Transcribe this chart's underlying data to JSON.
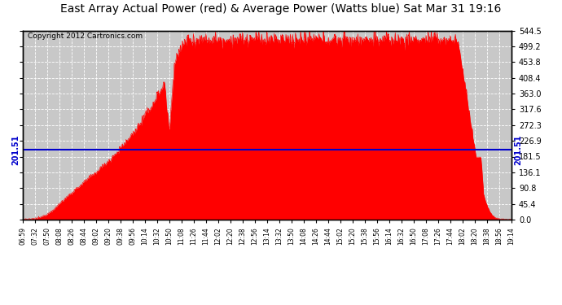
{
  "title": "East Array Actual Power (red) & Average Power (Watts blue) Sat Mar 31 19:16",
  "copyright": "Copyright 2012 Cartronics.com",
  "average_power": 201.51,
  "y_max": 544.5,
  "y_min": 0.0,
  "y_ticks": [
    0.0,
    45.4,
    90.8,
    136.1,
    181.5,
    226.9,
    272.3,
    317.6,
    363.0,
    408.4,
    453.8,
    499.2,
    544.5
  ],
  "y_tick_labels": [
    "0.0",
    "45.4",
    "90.8",
    "136.1",
    "181.5",
    "226.9",
    "272.3",
    "317.6",
    "363.0",
    "408.4",
    "453.8",
    "499.2",
    "544.5"
  ],
  "x_labels": [
    "06:59",
    "07:32",
    "07:50",
    "08:08",
    "08:26",
    "08:44",
    "09:02",
    "09:20",
    "09:38",
    "09:56",
    "10:14",
    "10:32",
    "10:50",
    "11:08",
    "11:26",
    "11:44",
    "12:02",
    "12:20",
    "12:38",
    "12:56",
    "13:14",
    "13:32",
    "13:50",
    "14:08",
    "14:26",
    "14:44",
    "15:02",
    "15:20",
    "15:38",
    "15:56",
    "16:14",
    "16:32",
    "16:50",
    "17:08",
    "17:26",
    "17:44",
    "18:02",
    "18:20",
    "18:38",
    "18:56",
    "19:14"
  ],
  "bg_color": "#ffffff",
  "fill_color": "#ff0000",
  "line_color": "#0000cc",
  "grid_color": "#aaaaaa",
  "plot_bg_color": "#c8c8c8",
  "title_fontsize": 10,
  "copyright_fontsize": 6.5,
  "avg_label_fontsize": 7,
  "tick_fontsize": 7
}
